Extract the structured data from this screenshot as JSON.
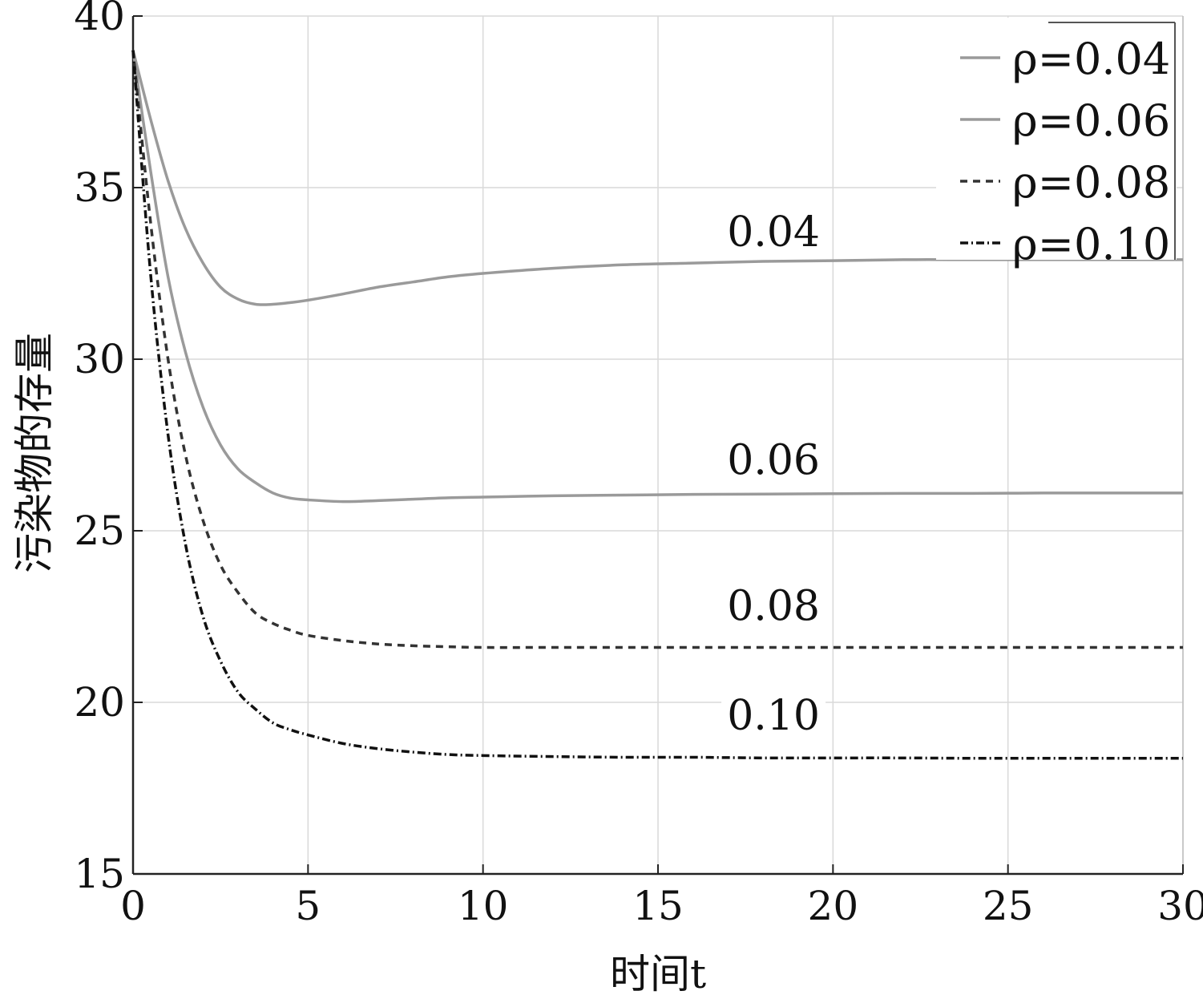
{
  "chart_data": {
    "type": "line",
    "xlabel": "时间t",
    "ylabel": "污染物的存量",
    "xlim": [
      0,
      30
    ],
    "ylim": [
      15,
      40
    ],
    "xticks": [
      0,
      5,
      10,
      15,
      20,
      25,
      30
    ],
    "yticks": [
      15,
      20,
      25,
      30,
      35,
      40
    ],
    "x_tick_labels": [
      "0",
      "5",
      "10",
      "15",
      "20",
      "25",
      "30"
    ],
    "y_tick_labels": [
      "15",
      "20",
      "25",
      "30",
      "35",
      "40"
    ],
    "grid": true,
    "legend_position": "top-right",
    "x": [
      0,
      0.5,
      1,
      1.5,
      2,
      2.5,
      3,
      3.5,
      4,
      4.5,
      5,
      6,
      7,
      8,
      9,
      10,
      12,
      14,
      16,
      18,
      20,
      22,
      24,
      26,
      28,
      30
    ],
    "series": [
      {
        "name": "ρ=0.04",
        "label": "0.04",
        "color": "#9a9a9a",
        "dash": "solid",
        "values": [
          39.0,
          37.0,
          35.2,
          33.8,
          32.8,
          32.1,
          31.75,
          31.6,
          31.6,
          31.65,
          31.72,
          31.9,
          32.1,
          32.25,
          32.4,
          32.5,
          32.65,
          32.75,
          32.8,
          32.85,
          32.87,
          32.9,
          32.9,
          32.9,
          32.9,
          32.9
        ]
      },
      {
        "name": "ρ=0.06",
        "label": "0.06",
        "color": "#9a9a9a",
        "dash": "solid",
        "values": [
          39.0,
          35.5,
          32.4,
          30.2,
          28.6,
          27.5,
          26.8,
          26.4,
          26.1,
          25.95,
          25.9,
          25.85,
          25.88,
          25.92,
          25.96,
          25.98,
          26.02,
          26.04,
          26.06,
          26.07,
          26.08,
          26.09,
          26.09,
          26.1,
          26.1,
          26.1
        ]
      },
      {
        "name": "ρ=0.08",
        "label": "0.08",
        "color": "#333333",
        "dash": "dashed",
        "values": [
          39.0,
          34.0,
          30.0,
          27.2,
          25.3,
          24.0,
          23.2,
          22.6,
          22.3,
          22.1,
          21.95,
          21.8,
          21.7,
          21.65,
          21.62,
          21.6,
          21.6,
          21.6,
          21.6,
          21.6,
          21.6,
          21.6,
          21.6,
          21.6,
          21.6,
          21.6
        ]
      },
      {
        "name": "ρ=0.10",
        "label": "0.10",
        "color": "#111111",
        "dash": "dashdot",
        "values": [
          39.0,
          32.5,
          27.8,
          24.6,
          22.5,
          21.2,
          20.3,
          19.8,
          19.4,
          19.2,
          19.05,
          18.8,
          18.65,
          18.55,
          18.48,
          18.45,
          18.42,
          18.4,
          18.4,
          18.38,
          18.38,
          18.38,
          18.37,
          18.37,
          18.37,
          18.37
        ]
      }
    ],
    "inline_labels": [
      {
        "text": "0.04",
        "x": 18.3,
        "y": 33.3
      },
      {
        "text": "0.06",
        "x": 18.3,
        "y": 26.65
      },
      {
        "text": "0.08",
        "x": 18.3,
        "y": 22.4
      },
      {
        "text": "0.10",
        "x": 18.3,
        "y": 19.2
      }
    ]
  }
}
